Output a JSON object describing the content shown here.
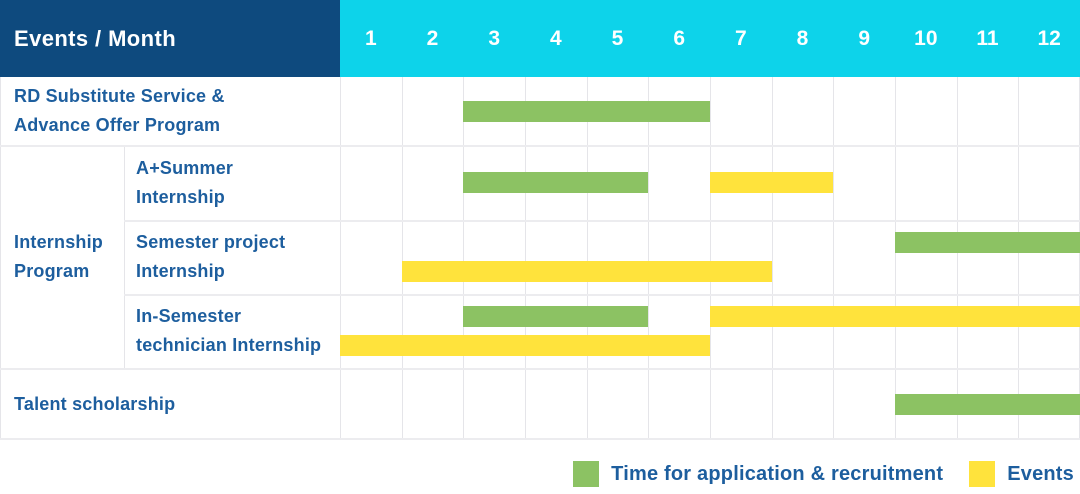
{
  "colors": {
    "header_bg": "#0e4a7e",
    "months_bg": "#0dd3ea",
    "text_blue": "#1d5e9e",
    "green": "#8cc263",
    "yellow": "#ffe33c",
    "grid_line": "#e5e5e9",
    "row_line": "#ececef"
  },
  "chart_data": {
    "type": "gantt",
    "corner_label": "Events / Month",
    "months": [
      "1",
      "2",
      "3",
      "4",
      "5",
      "6",
      "7",
      "8",
      "9",
      "10",
      "11",
      "12"
    ],
    "legend": [
      {
        "kind": "recruitment",
        "label": "Time for application & recruitment",
        "color": "#8cc263"
      },
      {
        "kind": "event",
        "label": "Events",
        "color": "#ffe33c"
      }
    ],
    "group": {
      "label_lines": [
        "Internship",
        "Program"
      ],
      "first_row": 1,
      "last_row": 3
    },
    "rows": [
      {
        "label_lines": [
          "RD Substitute Service &",
          "Advance Offer Program"
        ],
        "indent": false,
        "lines": [
          [
            {
              "kind": "recruitment",
              "from_month": 3,
              "to_month": 6
            }
          ]
        ]
      },
      {
        "label_lines": [
          "A+Summer",
          "Internship"
        ],
        "indent": true,
        "lines": [
          [
            {
              "kind": "recruitment",
              "from_month": 3,
              "to_month": 5
            },
            {
              "kind": "event",
              "from_month": 7,
              "to_month": 8
            }
          ]
        ]
      },
      {
        "label_lines": [
          "Semester project",
          "Internship"
        ],
        "indent": true,
        "lines": [
          [
            {
              "kind": "recruitment",
              "from_month": 10,
              "to_month": 12
            }
          ],
          [
            {
              "kind": "event",
              "from_month": 2,
              "to_month": 7
            }
          ]
        ]
      },
      {
        "label_lines": [
          "In-Semester",
          "technician Internship"
        ],
        "indent": true,
        "lines": [
          [
            {
              "kind": "recruitment",
              "from_month": 3,
              "to_month": 5
            },
            {
              "kind": "event",
              "from_month": 7,
              "to_month": 12
            }
          ],
          [
            {
              "kind": "event",
              "from_month": 1,
              "to_month": 6
            }
          ]
        ]
      },
      {
        "label_lines": [
          "Talent scholarship"
        ],
        "indent": false,
        "lines": [
          [
            {
              "kind": "recruitment",
              "from_month": 10,
              "to_month": 12
            }
          ]
        ]
      }
    ]
  }
}
